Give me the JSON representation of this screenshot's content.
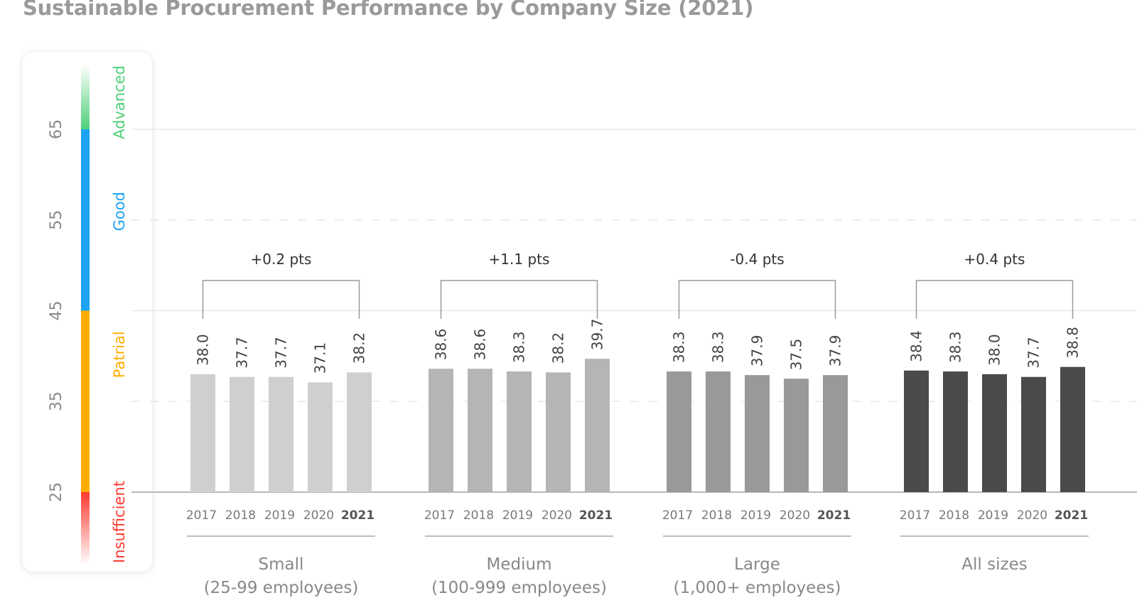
{
  "title": "Sustainable Procurement Performance by Company Size (2021)",
  "chart_data": {
    "type": "bar",
    "title": "Sustainable Procurement Performance by Company Size (2021)",
    "ylim": [
      25,
      65
    ],
    "yticks": [
      25,
      35,
      45,
      55,
      65
    ],
    "grid": true,
    "years": [
      "2017",
      "2018",
      "2019",
      "2020",
      "2021"
    ],
    "highlight_year": "2021",
    "levels": [
      {
        "name": "Insufficient",
        "color": "#ff3a30"
      },
      {
        "name": "Patrial",
        "color": "#ffae00"
      },
      {
        "name": "Good",
        "color": "#1ca3f2"
      },
      {
        "name": "Advanced",
        "color": "#4fd07a"
      }
    ],
    "groups": [
      {
        "label_line1": "Small",
        "label_line2": "(25-99 employees)",
        "change": "+0.2 pts",
        "color": "#cfcfcf",
        "values": [
          38.0,
          37.7,
          37.7,
          37.1,
          38.2
        ],
        "value_labels": [
          "38.0",
          "37.7",
          "37.7",
          "37.1",
          "38.2"
        ]
      },
      {
        "label_line1": "Medium",
        "label_line2": "(100-999 employees)",
        "change": "+1.1 pts",
        "color": "#b5b5b5",
        "values": [
          38.6,
          38.6,
          38.3,
          38.2,
          39.7
        ],
        "value_labels": [
          "38.6",
          "38.6",
          "38.3",
          "38.2",
          "39.7"
        ]
      },
      {
        "label_line1": "Large",
        "label_line2": "(1,000+ employees)",
        "change": "-0.4 pts",
        "color": "#999999",
        "values": [
          38.3,
          38.3,
          37.9,
          37.5,
          37.9
        ],
        "value_labels": [
          "38.3",
          "38.3",
          "37.9",
          "37.5",
          "37.9"
        ]
      },
      {
        "label_line1": "All sizes",
        "label_line2": "",
        "change": "+0.4 pts",
        "color": "#4a4a4a",
        "values": [
          38.4,
          38.3,
          38.0,
          37.7,
          38.8
        ],
        "value_labels": [
          "38.4",
          "38.3",
          "38.0",
          "37.7",
          "38.8"
        ]
      }
    ]
  }
}
